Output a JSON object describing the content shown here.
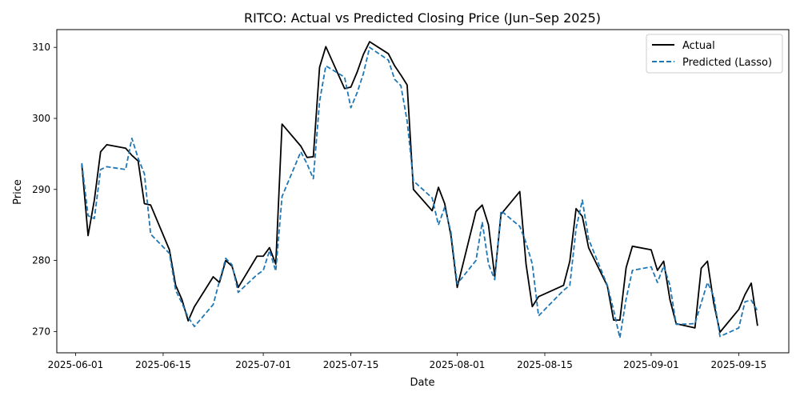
{
  "chart_data": {
    "type": "line",
    "title": "RITCO: Actual vs Predicted Closing Price (Jun–Sep 2025)",
    "xlabel": "Date",
    "ylabel": "Price",
    "x_ticks": [
      "2025-06-01",
      "2025-06-15",
      "2025-07-01",
      "2025-07-15",
      "2025-08-01",
      "2025-08-15",
      "2025-09-01",
      "2025-09-15"
    ],
    "y_ticks": [
      270,
      280,
      290,
      300,
      310
    ],
    "xlim": [
      "2025-05-29",
      "2025-09-23"
    ],
    "ylim": [
      267,
      312.5
    ],
    "grid": false,
    "legend_position": "top-right",
    "series": [
      {
        "name": "Actual",
        "color": "#000000",
        "style": "solid",
        "points": [
          [
            "2025-06-02",
            293.5
          ],
          [
            "2025-06-03",
            283.5
          ],
          [
            "2025-06-04",
            288.5
          ],
          [
            "2025-06-05",
            295.3
          ],
          [
            "2025-06-06",
            296.3
          ],
          [
            "2025-06-09",
            295.8
          ],
          [
            "2025-06-10",
            294.8
          ],
          [
            "2025-06-11",
            294.0
          ],
          [
            "2025-06-12",
            288.0
          ],
          [
            "2025-06-13",
            287.8
          ],
          [
            "2025-06-16",
            281.5
          ],
          [
            "2025-06-17",
            276.5
          ],
          [
            "2025-06-18",
            274.5
          ],
          [
            "2025-06-19",
            271.5
          ],
          [
            "2025-06-20",
            273.5
          ],
          [
            "2025-06-23",
            277.7
          ],
          [
            "2025-06-24",
            276.9
          ],
          [
            "2025-06-25",
            280.0
          ],
          [
            "2025-06-26",
            279.2
          ],
          [
            "2025-06-27",
            276.2
          ],
          [
            "2025-06-30",
            280.6
          ],
          [
            "2025-07-01",
            280.6
          ],
          [
            "2025-07-02",
            281.8
          ],
          [
            "2025-07-03",
            279.5
          ],
          [
            "2025-07-04",
            299.2
          ],
          [
            "2025-07-07",
            296.1
          ],
          [
            "2025-07-08",
            294.5
          ],
          [
            "2025-07-09",
            294.6
          ],
          [
            "2025-07-10",
            307.2
          ],
          [
            "2025-07-11",
            310.1
          ],
          [
            "2025-07-14",
            304.2
          ],
          [
            "2025-07-15",
            304.4
          ],
          [
            "2025-07-16",
            306.5
          ],
          [
            "2025-07-17",
            309.0
          ],
          [
            "2025-07-18",
            310.8
          ],
          [
            "2025-07-21",
            309.1
          ],
          [
            "2025-07-22",
            307.4
          ],
          [
            "2025-07-23",
            306.1
          ],
          [
            "2025-07-24",
            304.7
          ],
          [
            "2025-07-25",
            290.0
          ],
          [
            "2025-07-28",
            287.0
          ],
          [
            "2025-07-29",
            290.3
          ],
          [
            "2025-07-30",
            288.0
          ],
          [
            "2025-07-31",
            283.5
          ],
          [
            "2025-08-01",
            276.2
          ],
          [
            "2025-08-04",
            286.9
          ],
          [
            "2025-08-05",
            287.8
          ],
          [
            "2025-08-06",
            285.0
          ],
          [
            "2025-08-07",
            277.7
          ],
          [
            "2025-08-08",
            286.5
          ],
          [
            "2025-08-11",
            289.7
          ],
          [
            "2025-08-12",
            279.5
          ],
          [
            "2025-08-13",
            273.5
          ],
          [
            "2025-08-14",
            274.9
          ],
          [
            "2025-08-18",
            276.5
          ],
          [
            "2025-08-19",
            279.9
          ],
          [
            "2025-08-20",
            287.3
          ],
          [
            "2025-08-21",
            286.2
          ],
          [
            "2025-08-22",
            281.8
          ],
          [
            "2025-08-25",
            276.4
          ],
          [
            "2025-08-26",
            271.6
          ],
          [
            "2025-08-27",
            271.6
          ],
          [
            "2025-08-28",
            279.0
          ],
          [
            "2025-08-29",
            282.0
          ],
          [
            "2025-09-01",
            281.5
          ],
          [
            "2025-09-02",
            278.6
          ],
          [
            "2025-09-03",
            279.9
          ],
          [
            "2025-09-04",
            274.5
          ],
          [
            "2025-09-05",
            271.1
          ],
          [
            "2025-09-08",
            270.5
          ],
          [
            "2025-09-09",
            278.9
          ],
          [
            "2025-09-10",
            279.9
          ],
          [
            "2025-09-11",
            274.0
          ],
          [
            "2025-09-12",
            269.9
          ],
          [
            "2025-09-15",
            273.1
          ],
          [
            "2025-09-16",
            275.2
          ],
          [
            "2025-09-17",
            276.8
          ],
          [
            "2025-09-18",
            270.8
          ]
        ]
      },
      {
        "name": "Predicted (Lasso)",
        "color": "#1f77b4",
        "style": "dashed",
        "points": [
          [
            "2025-06-02",
            293.7
          ],
          [
            "2025-06-03",
            286.3
          ],
          [
            "2025-06-04",
            285.9
          ],
          [
            "2025-06-05",
            292.8
          ],
          [
            "2025-06-06",
            293.2
          ],
          [
            "2025-06-09",
            292.8
          ],
          [
            "2025-06-10",
            297.2
          ],
          [
            "2025-06-11",
            294.4
          ],
          [
            "2025-06-12",
            292.2
          ],
          [
            "2025-06-13",
            283.7
          ],
          [
            "2025-06-16",
            281.0
          ],
          [
            "2025-06-17",
            275.8
          ],
          [
            "2025-06-18",
            274.0
          ],
          [
            "2025-06-19",
            272.0
          ],
          [
            "2025-06-20",
            270.7
          ],
          [
            "2025-06-23",
            273.8
          ],
          [
            "2025-06-24",
            277.1
          ],
          [
            "2025-06-25",
            280.3
          ],
          [
            "2025-06-26",
            279.4
          ],
          [
            "2025-06-27",
            275.5
          ],
          [
            "2025-06-30",
            278.0
          ],
          [
            "2025-07-01",
            278.6
          ],
          [
            "2025-07-02",
            281.4
          ],
          [
            "2025-07-03",
            278.5
          ],
          [
            "2025-07-04",
            289.0
          ],
          [
            "2025-07-07",
            295.3
          ],
          [
            "2025-07-08",
            293.6
          ],
          [
            "2025-07-09",
            291.5
          ],
          [
            "2025-07-10",
            302.4
          ],
          [
            "2025-07-11",
            307.4
          ],
          [
            "2025-07-14",
            305.8
          ],
          [
            "2025-07-15",
            301.5
          ],
          [
            "2025-07-16",
            303.6
          ],
          [
            "2025-07-17",
            306.3
          ],
          [
            "2025-07-18",
            310.0
          ],
          [
            "2025-07-21",
            308.2
          ],
          [
            "2025-07-22",
            305.5
          ],
          [
            "2025-07-23",
            304.6
          ],
          [
            "2025-07-24",
            299.6
          ],
          [
            "2025-07-25",
            291.2
          ],
          [
            "2025-07-28",
            288.8
          ],
          [
            "2025-07-29",
            285.0
          ],
          [
            "2025-07-30",
            287.5
          ],
          [
            "2025-07-31",
            284.0
          ],
          [
            "2025-08-01",
            276.7
          ],
          [
            "2025-08-04",
            280.0
          ],
          [
            "2025-08-05",
            285.4
          ],
          [
            "2025-08-06",
            279.5
          ],
          [
            "2025-08-07",
            277.3
          ],
          [
            "2025-08-08",
            287.0
          ],
          [
            "2025-08-11",
            284.8
          ],
          [
            "2025-08-12",
            282.5
          ],
          [
            "2025-08-13",
            279.5
          ],
          [
            "2025-08-14",
            272.2
          ],
          [
            "2025-08-18",
            275.8
          ],
          [
            "2025-08-19",
            276.5
          ],
          [
            "2025-08-20",
            284.5
          ],
          [
            "2025-08-21",
            288.5
          ],
          [
            "2025-08-22",
            283.0
          ],
          [
            "2025-08-25",
            276.5
          ],
          [
            "2025-08-26",
            273.0
          ],
          [
            "2025-08-27",
            269.1
          ],
          [
            "2025-08-28",
            274.6
          ],
          [
            "2025-08-29",
            278.6
          ],
          [
            "2025-09-01",
            279.1
          ],
          [
            "2025-09-02",
            276.9
          ],
          [
            "2025-09-03",
            279.2
          ],
          [
            "2025-09-04",
            276.5
          ],
          [
            "2025-09-05",
            271.0
          ],
          [
            "2025-09-08",
            271.1
          ],
          [
            "2025-09-09",
            274.0
          ],
          [
            "2025-09-10",
            276.9
          ],
          [
            "2025-09-11",
            275.0
          ],
          [
            "2025-09-12",
            269.3
          ],
          [
            "2025-09-15",
            270.5
          ],
          [
            "2025-09-16",
            274.2
          ],
          [
            "2025-09-17",
            274.4
          ],
          [
            "2025-09-18",
            272.9
          ]
        ]
      }
    ]
  }
}
